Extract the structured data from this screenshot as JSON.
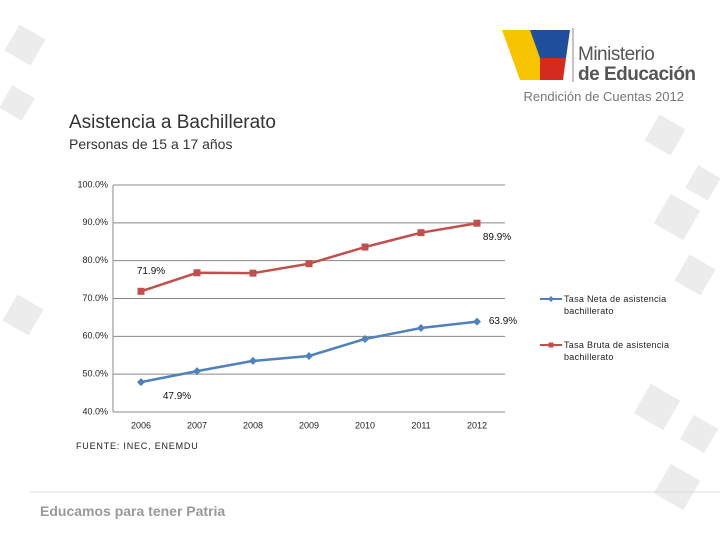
{
  "header": {
    "logo_line1": "Ministerio",
    "logo_line2": "de Educación",
    "report": "Rendición de Cuentas 2012"
  },
  "chart_data": {
    "type": "line",
    "title": "Asistencia a Bachillerato",
    "subtitle": "Personas de 15 a 17 años",
    "categories": [
      "2006",
      "2007",
      "2008",
      "2009",
      "2010",
      "2011",
      "2012"
    ],
    "series": [
      {
        "name": "Tasa Neta de asistencia bachillerato",
        "color": "#4f81bd",
        "marker": "diamond",
        "values": [
          47.9,
          50.8,
          53.5,
          54.8,
          59.3,
          62.2,
          63.9
        ],
        "value_labels": [
          "47.9%",
          null,
          null,
          null,
          null,
          null,
          "63.9%"
        ]
      },
      {
        "name": "Tasa Bruta de asistencia bachillerato",
        "color": "#c0504d",
        "marker": "square",
        "values": [
          71.9,
          76.8,
          76.7,
          79.2,
          83.6,
          87.4,
          89.9
        ],
        "value_labels": [
          "71.9%",
          null,
          null,
          null,
          null,
          null,
          "89.9%"
        ]
      }
    ],
    "ylim": [
      40,
      100
    ],
    "yticks": [
      {
        "value": 40,
        "label": "40.0%"
      },
      {
        "value": 50,
        "label": "50.0%"
      },
      {
        "value": 60,
        "label": "60.0%"
      },
      {
        "value": 70,
        "label": "70.0%"
      },
      {
        "value": 80,
        "label": "80.0%"
      },
      {
        "value": 90,
        "label": "90.0%"
      },
      {
        "value": 100,
        "label": "100.0%"
      }
    ],
    "grid": true,
    "legend": "right",
    "source": "FUENTE: INEC, ENEMDU"
  },
  "footer": "Educamos para tener Patria"
}
